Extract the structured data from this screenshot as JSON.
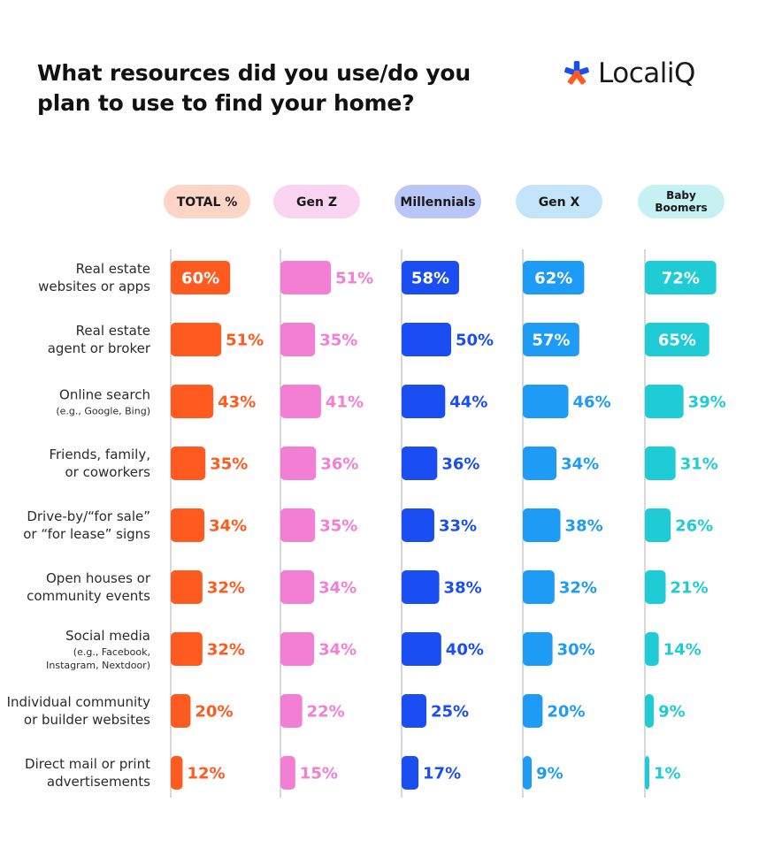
{
  "title": "What resources did you use/do you plan to use to find your home?",
  "brand": {
    "name": "LocaliQ",
    "icon": "localiq-logo-icon",
    "colors": {
      "orange": "#FF5A1F",
      "blue": "#1A4EF2"
    }
  },
  "chart_data": {
    "type": "bar",
    "orientation": "horizontal",
    "categories": [
      {
        "main": [
          "Real estate",
          "websites or apps"
        ],
        "sub": []
      },
      {
        "main": [
          "Real estate",
          "agent or broker"
        ],
        "sub": []
      },
      {
        "main": [
          "Online search"
        ],
        "sub": [
          "(e.g., Google, Bing)"
        ]
      },
      {
        "main": [
          "Friends, family,",
          "or coworkers"
        ],
        "sub": []
      },
      {
        "main": [
          "Drive-by/“for sale”",
          "or “for lease” signs"
        ],
        "sub": []
      },
      {
        "main": [
          "Open houses or",
          "community events"
        ],
        "sub": []
      },
      {
        "main": [
          "Social media"
        ],
        "sub": [
          "(e.g., Facebook,",
          "Instagram, Nextdoor)"
        ]
      },
      {
        "main": [
          "Individual community",
          "or builder websites"
        ],
        "sub": []
      },
      {
        "main": [
          "Direct mail or print",
          "advertisements"
        ],
        "sub": []
      }
    ],
    "unit": "%",
    "xlim": [
      0,
      100
    ],
    "series": [
      {
        "name": "TOTAL %",
        "header_lines": [
          "TOTAL %"
        ],
        "color": "#FF5A1F",
        "pill_color": "#FDD5C6",
        "inside_color": "#FFFFFF",
        "outside_color": "#FF5A1F",
        "values": [
          60,
          51,
          43,
          35,
          34,
          32,
          32,
          20,
          12
        ]
      },
      {
        "name": "Gen Z",
        "header_lines": [
          "Gen Z"
        ],
        "color": "#F27FD3",
        "pill_color": "#FAD4F0",
        "inside_color": "#FFFFFF",
        "outside_color": "#F27FD3",
        "values": [
          51,
          35,
          41,
          36,
          35,
          34,
          34,
          22,
          15
        ]
      },
      {
        "name": "Millennials",
        "header_lines": [
          "Millennials"
        ],
        "color": "#1A4EF2",
        "pill_color": "#B9C6F8",
        "inside_color": "#FFFFFF",
        "outside_color": "#1A4EF2",
        "values": [
          58,
          50,
          44,
          36,
          33,
          38,
          40,
          25,
          17
        ]
      },
      {
        "name": "Gen X",
        "header_lines": [
          "Gen X"
        ],
        "color": "#1E9BF5",
        "pill_color": "#C4E4FC",
        "inside_color": "#FFFFFF",
        "outside_color": "#1E9BF5",
        "values": [
          62,
          57,
          46,
          34,
          38,
          32,
          30,
          20,
          9
        ]
      },
      {
        "name": "Baby Boomers",
        "header_lines": [
          "Baby",
          "Boomers"
        ],
        "color": "#1FCCD6",
        "pill_color": "#C6F1F3",
        "inside_color": "#FFFFFF",
        "outside_color": "#1FCCD6",
        "values": [
          72,
          65,
          39,
          31,
          26,
          21,
          14,
          9,
          1
        ]
      }
    ]
  }
}
